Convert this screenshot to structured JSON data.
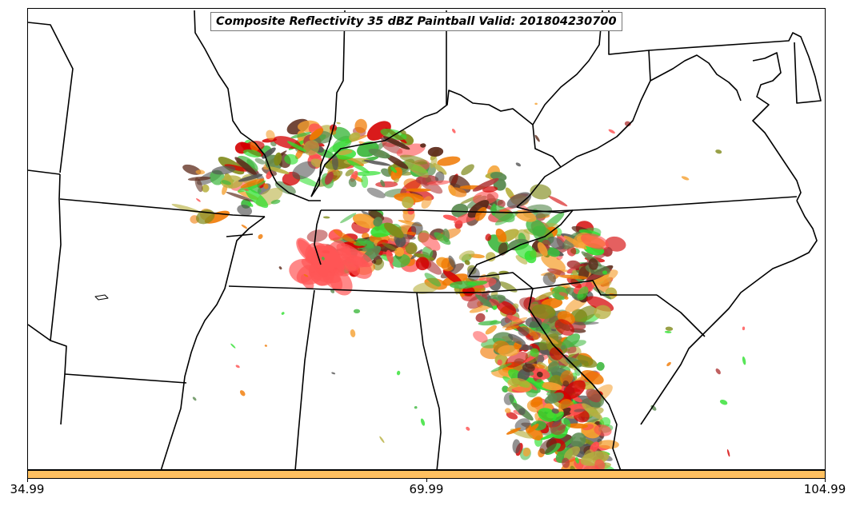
{
  "map": {
    "title": "Composite Reflectivity 35 dBZ Paintball Valid: 201804230700",
    "colors": {
      "state_lines": "#000000",
      "background": "#ffffff",
      "paint_palette": [
        "#d40000",
        "#ff4d4d",
        "#b03a3a",
        "#f07800",
        "#f5a030",
        "#808a1a",
        "#b8b040",
        "#3fb83f",
        "#2ee02e",
        "#5a8a50",
        "#5c2a1a",
        "#555555"
      ]
    },
    "colorbar": {
      "fill_color": "#ffc060",
      "ticks": [
        "34.99",
        "69.99",
        "104.99"
      ]
    }
  }
}
